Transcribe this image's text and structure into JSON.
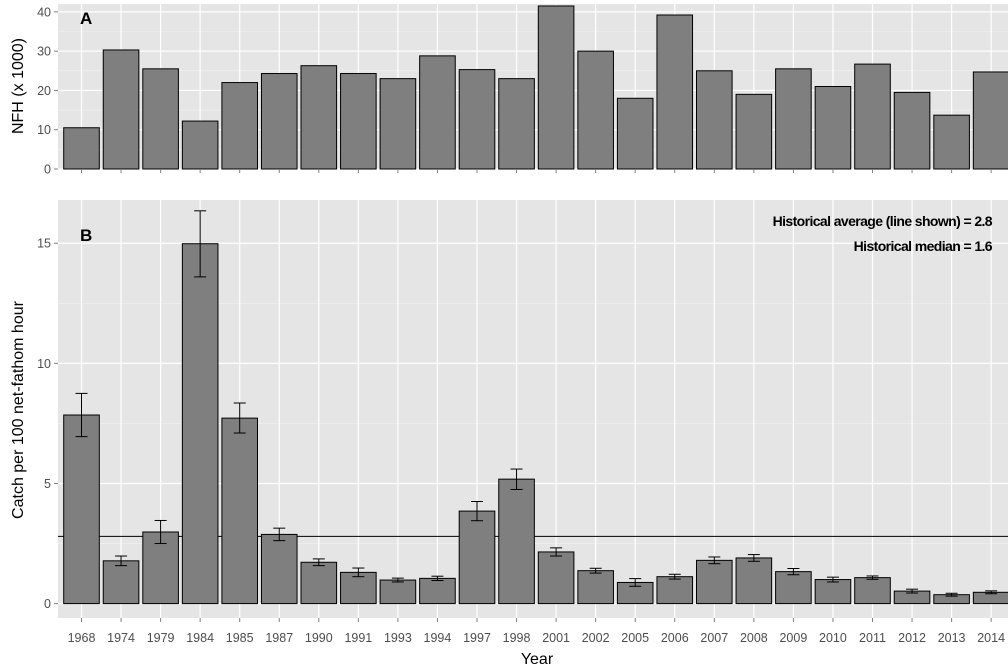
{
  "chart_data": [
    {
      "type": "bar",
      "panel_label": "A",
      "ylabel": "NFH (x 1000)",
      "xlabel": "",
      "ylim": [
        0,
        42
      ],
      "yticks": [
        0,
        10,
        20,
        30,
        40
      ],
      "grid": true,
      "bar_color": "#7f7f7f",
      "panel_background": "#e5e5e5",
      "categories": [
        "1968",
        "1974",
        "1979",
        "1984",
        "1985",
        "1987",
        "1990",
        "1991",
        "1993",
        "1994",
        "1997",
        "1998",
        "2001",
        "2002",
        "2005",
        "2006",
        "2007",
        "2008",
        "2009",
        "2010",
        "2011",
        "2012",
        "2013",
        "2014"
      ],
      "values": [
        10.5,
        30.3,
        25.5,
        12.2,
        22.0,
        24.3,
        26.3,
        24.3,
        23.0,
        28.8,
        25.3,
        23.0,
        41.5,
        30.0,
        18.0,
        39.2,
        25.0,
        19.0,
        25.5,
        21.0,
        26.7,
        19.5,
        13.7,
        24.7
      ]
    },
    {
      "type": "bar",
      "panel_label": "B",
      "ylabel": "Catch per 100 net-fathom hour",
      "xlabel": "Year",
      "ylim": [
        -0.6,
        16.8
      ],
      "yticks": [
        0,
        5,
        10,
        15
      ],
      "grid": true,
      "bar_color": "#7f7f7f",
      "panel_background": "#e5e5e5",
      "categories": [
        "1968",
        "1974",
        "1979",
        "1984",
        "1985",
        "1987",
        "1990",
        "1991",
        "1993",
        "1994",
        "1997",
        "1998",
        "2001",
        "2002",
        "2005",
        "2006",
        "2007",
        "2008",
        "2009",
        "2010",
        "2011",
        "2012",
        "2013",
        "2014"
      ],
      "values": [
        7.85,
        1.78,
        2.98,
        14.98,
        7.72,
        2.88,
        1.72,
        1.3,
        0.98,
        1.05,
        3.85,
        5.18,
        2.15,
        1.37,
        0.88,
        1.12,
        1.8,
        1.9,
        1.33,
        1.0,
        1.08,
        0.52,
        0.37,
        0.47
      ],
      "error_low": [
        6.95,
        1.58,
        2.5,
        13.6,
        7.1,
        2.62,
        1.58,
        1.12,
        0.9,
        0.96,
        3.45,
        4.75,
        1.98,
        1.27,
        0.72,
        1.02,
        1.66,
        1.76,
        1.2,
        0.9,
        1.01,
        0.44,
        0.31,
        0.41
      ],
      "error_high": [
        8.75,
        1.98,
        3.46,
        16.35,
        8.35,
        3.14,
        1.86,
        1.48,
        1.06,
        1.14,
        4.25,
        5.6,
        2.32,
        1.47,
        1.04,
        1.22,
        1.94,
        2.04,
        1.46,
        1.1,
        1.15,
        0.6,
        0.43,
        0.53
      ],
      "reference_line": 2.8,
      "annotations": [
        "Historical average (line shown) = 2.8",
        "Historical median = 1.6"
      ]
    }
  ]
}
